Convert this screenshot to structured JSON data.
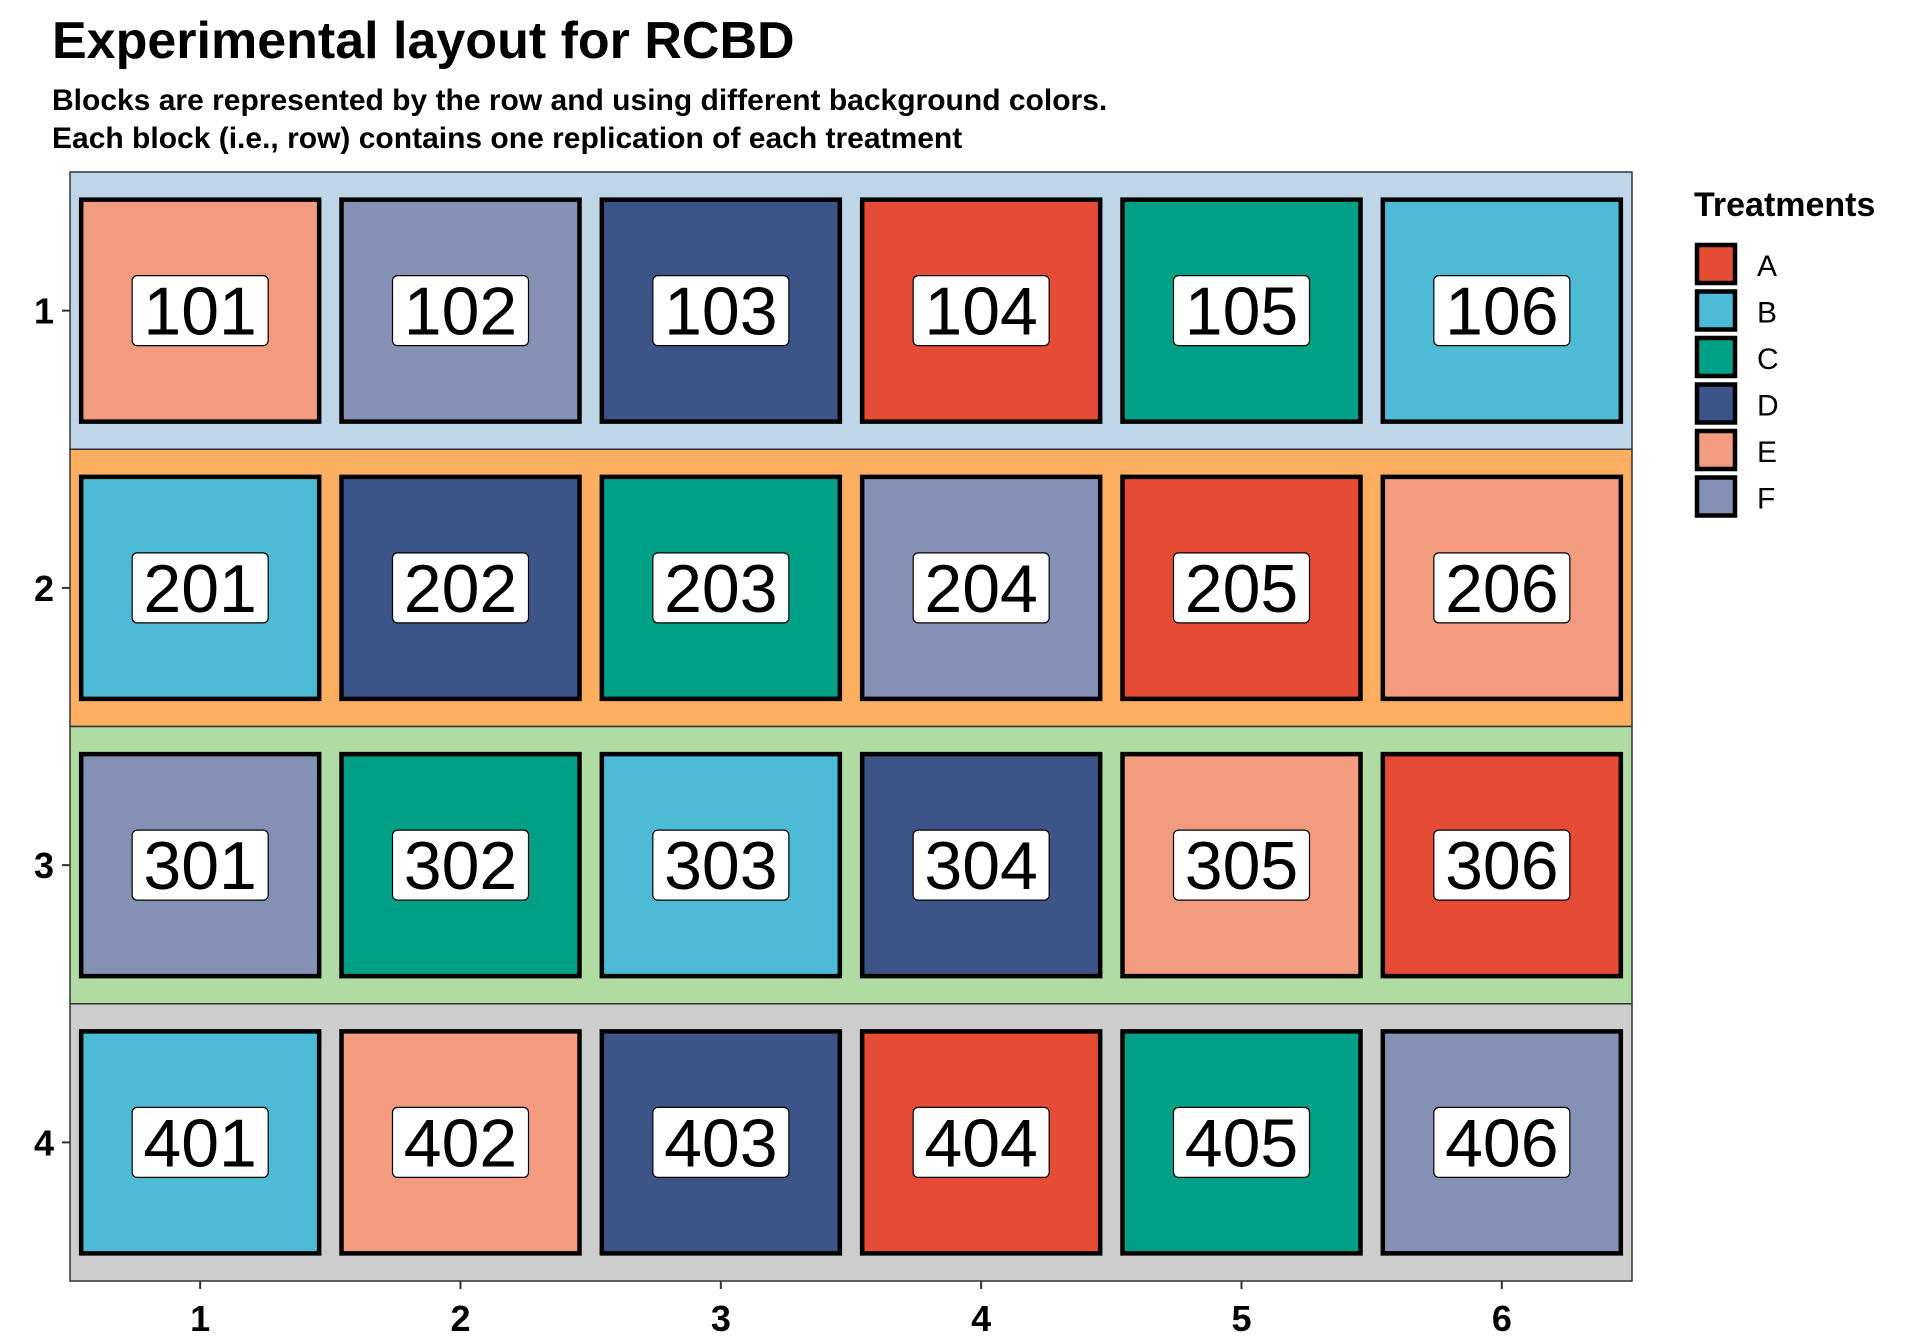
{
  "chart_data": {
    "type": "heatmap",
    "title": "Experimental layout for RCBD",
    "subtitle_lines": [
      "Blocks are represented by the row and using different background colors.",
      "Each block (i.e., row) contains one replication of each treatment"
    ],
    "x_ticks": [
      "1",
      "2",
      "3",
      "4",
      "5",
      "6"
    ],
    "y_ticks": [
      "1",
      "2",
      "3",
      "4"
    ],
    "block_colors": [
      "#BFD5E8",
      "#FCAF60",
      "#B0DCA4",
      "#CDCDCD"
    ],
    "legend": {
      "title": "Treatments",
      "position": "right",
      "entries": [
        {
          "name": "A",
          "color": "#E64B35"
        },
        {
          "name": "B",
          "color": "#4DBBD5"
        },
        {
          "name": "C",
          "color": "#00A087"
        },
        {
          "name": "D",
          "color": "#3C5488"
        },
        {
          "name": "E",
          "color": "#F39B7F"
        },
        {
          "name": "F",
          "color": "#8491B4"
        }
      ]
    },
    "plots": [
      {
        "block": 1,
        "col": 1,
        "label": "101",
        "treatment": "E"
      },
      {
        "block": 1,
        "col": 2,
        "label": "102",
        "treatment": "F"
      },
      {
        "block": 1,
        "col": 3,
        "label": "103",
        "treatment": "D"
      },
      {
        "block": 1,
        "col": 4,
        "label": "104",
        "treatment": "A"
      },
      {
        "block": 1,
        "col": 5,
        "label": "105",
        "treatment": "C"
      },
      {
        "block": 1,
        "col": 6,
        "label": "106",
        "treatment": "B"
      },
      {
        "block": 2,
        "col": 1,
        "label": "201",
        "treatment": "B"
      },
      {
        "block": 2,
        "col": 2,
        "label": "202",
        "treatment": "D"
      },
      {
        "block": 2,
        "col": 3,
        "label": "203",
        "treatment": "C"
      },
      {
        "block": 2,
        "col": 4,
        "label": "204",
        "treatment": "F"
      },
      {
        "block": 2,
        "col": 5,
        "label": "205",
        "treatment": "A"
      },
      {
        "block": 2,
        "col": 6,
        "label": "206",
        "treatment": "E"
      },
      {
        "block": 3,
        "col": 1,
        "label": "301",
        "treatment": "F"
      },
      {
        "block": 3,
        "col": 2,
        "label": "302",
        "treatment": "C"
      },
      {
        "block": 3,
        "col": 3,
        "label": "303",
        "treatment": "B"
      },
      {
        "block": 3,
        "col": 4,
        "label": "304",
        "treatment": "D"
      },
      {
        "block": 3,
        "col": 5,
        "label": "305",
        "treatment": "E"
      },
      {
        "block": 3,
        "col": 6,
        "label": "306",
        "treatment": "A"
      },
      {
        "block": 4,
        "col": 1,
        "label": "401",
        "treatment": "B"
      },
      {
        "block": 4,
        "col": 2,
        "label": "402",
        "treatment": "E"
      },
      {
        "block": 4,
        "col": 3,
        "label": "403",
        "treatment": "D"
      },
      {
        "block": 4,
        "col": 4,
        "label": "404",
        "treatment": "A"
      },
      {
        "block": 4,
        "col": 5,
        "label": "405",
        "treatment": "C"
      },
      {
        "block": 4,
        "col": 6,
        "label": "406",
        "treatment": "F"
      }
    ]
  }
}
